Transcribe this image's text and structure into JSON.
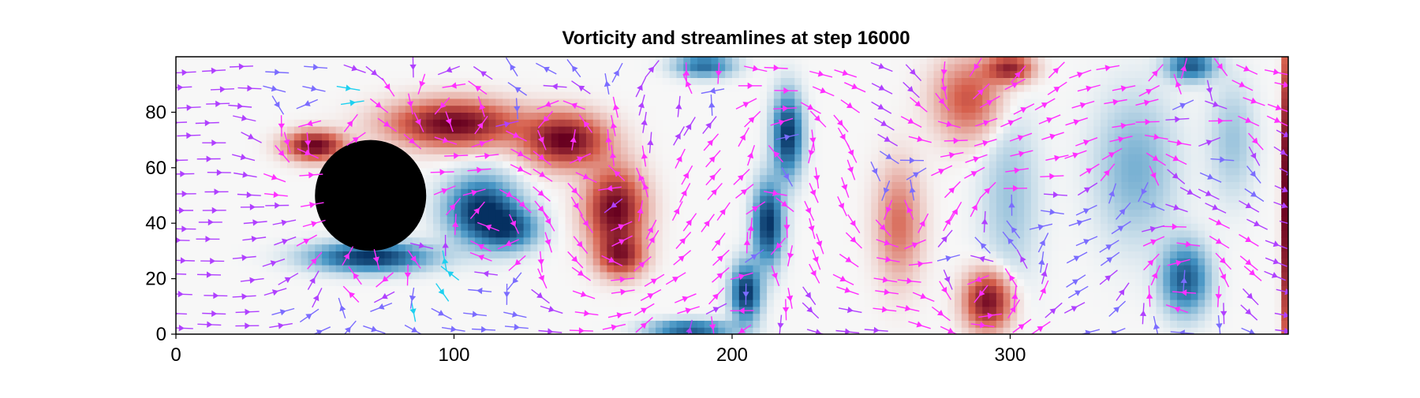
{
  "chart_data": {
    "type": "heatmap",
    "title": "Vorticity and streamlines at step 16000",
    "xlabel": "",
    "ylabel": "",
    "xlim": [
      0,
      400
    ],
    "ylim": [
      0,
      100
    ],
    "x_ticks": [
      0,
      100,
      200,
      300
    ],
    "y_ticks": [
      0,
      20,
      40,
      60,
      80
    ],
    "grid": false,
    "legend": "none",
    "obstacle": {
      "shape": "circle",
      "cx": 70,
      "cy": 50,
      "r": 20,
      "color": "#000000"
    },
    "colormap": {
      "name": "RdBu",
      "negative": "#053061",
      "zero": "#f7f7f7",
      "positive": "#67001f"
    },
    "vortices": [
      {
        "x": 50,
        "y": 68,
        "strength": 1.0,
        "sx": 10,
        "sy": 5
      },
      {
        "x": 100,
        "y": 76,
        "strength": 1.0,
        "sx": 22,
        "sy": 8
      },
      {
        "x": 140,
        "y": 70,
        "strength": 1.0,
        "sx": 14,
        "sy": 9
      },
      {
        "x": 158,
        "y": 45,
        "strength": 1.0,
        "sx": 10,
        "sy": 14
      },
      {
        "x": 160,
        "y": 28,
        "strength": 0.7,
        "sx": 8,
        "sy": 7
      },
      {
        "x": 70,
        "y": 28,
        "strength": -1.0,
        "sx": 20,
        "sy": 5
      },
      {
        "x": 110,
        "y": 45,
        "strength": -1.0,
        "sx": 12,
        "sy": 11
      },
      {
        "x": 120,
        "y": 38,
        "strength": -0.7,
        "sx": 10,
        "sy": 7
      },
      {
        "x": 185,
        "y": 2,
        "strength": -0.8,
        "sx": 14,
        "sy": 3
      },
      {
        "x": 205,
        "y": 15,
        "strength": -1.0,
        "sx": 5,
        "sy": 10
      },
      {
        "x": 213,
        "y": 40,
        "strength": -1.0,
        "sx": 5,
        "sy": 14
      },
      {
        "x": 220,
        "y": 72,
        "strength": -1.0,
        "sx": 5,
        "sy": 14
      },
      {
        "x": 190,
        "y": 97,
        "strength": -0.7,
        "sx": 10,
        "sy": 4
      },
      {
        "x": 260,
        "y": 40,
        "strength": 0.45,
        "sx": 8,
        "sy": 20
      },
      {
        "x": 285,
        "y": 85,
        "strength": 0.55,
        "sx": 12,
        "sy": 14
      },
      {
        "x": 292,
        "y": 12,
        "strength": 0.95,
        "sx": 8,
        "sy": 10
      },
      {
        "x": 300,
        "y": 96,
        "strength": 0.8,
        "sx": 8,
        "sy": 5
      },
      {
        "x": 300,
        "y": 50,
        "strength": -0.25,
        "sx": 10,
        "sy": 30
      },
      {
        "x": 345,
        "y": 60,
        "strength": -0.35,
        "sx": 14,
        "sy": 25
      },
      {
        "x": 363,
        "y": 20,
        "strength": -0.8,
        "sx": 8,
        "sy": 12
      },
      {
        "x": 365,
        "y": 97,
        "strength": -0.8,
        "sx": 8,
        "sy": 5
      },
      {
        "x": 380,
        "y": 70,
        "strength": -0.25,
        "sx": 8,
        "sy": 20
      },
      {
        "x": 399,
        "y": 50,
        "strength": 1.0,
        "sx": 1.5,
        "sy": 60
      }
    ],
    "streamline_colors": [
      "#1ed0f0",
      "#7b6cff",
      "#b040ff",
      "#ff2fff"
    ]
  }
}
